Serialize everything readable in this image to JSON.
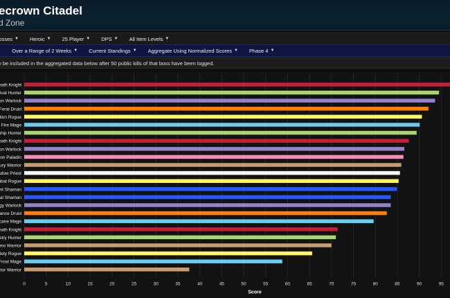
{
  "header": {
    "title": "ecrown Citadel",
    "subtitle": "d Zone"
  },
  "filters_row1": [
    {
      "label": "ll Bosses"
    },
    {
      "label": "Heroic"
    },
    {
      "label": "25 Player"
    },
    {
      "label": "DPS"
    },
    {
      "label": "All Item Levels"
    }
  ],
  "filters_row2": [
    {
      "label": "n"
    },
    {
      "label": "Over a Range of 2 Weeks"
    },
    {
      "label": "Current Standings"
    },
    {
      "label": "Aggregate Using Normalized Scores"
    },
    {
      "label": "Phase 4"
    }
  ],
  "notice": {
    "text": "y be included in the aggregated data below after 50 public kills of that boss have been logged."
  },
  "chart_data": {
    "type": "bar",
    "orientation": "horizontal",
    "xlabel": "Score",
    "xlim": [
      0,
      97
    ],
    "xticks": [
      0,
      5,
      10,
      15,
      20,
      25,
      30,
      35,
      40,
      45,
      50,
      55,
      60,
      65,
      70,
      75,
      80,
      85,
      90,
      95
    ],
    "grid": true,
    "categories": [
      "eath Knight",
      "rvival Hunter",
      "ion Warlock",
      "Feral Druid",
      "ation Rogue",
      "Fire Mage",
      "ship Hunter",
      "eath Knight",
      "ion Warlock",
      "tion Paladin",
      "fury Warrior",
      "adow Priest",
      "mbat Rogue",
      "ent Shaman",
      "ntal Shaman",
      "ogy Warlock",
      "lance Druid",
      "rcane Mage",
      "eath Knight",
      "ketry Hunter",
      "rms Warrior",
      "tlety Rogue",
      "Frost Mage",
      "ctor Warrior"
    ],
    "values": [
      97,
      94.5,
      93.6,
      92.1,
      90.6,
      90.1,
      89.4,
      87.6,
      86.6,
      86.4,
      85.9,
      85.6,
      85.3,
      84.9,
      83.5,
      83.5,
      82.6,
      79.6,
      71.4,
      71.0,
      70.0,
      65.6,
      58.8,
      37.6
    ],
    "colors": [
      "#c41e3a",
      "#abd473",
      "#9482c9",
      "#ff7d0a",
      "#fff569",
      "#69ccf0",
      "#abd473",
      "#c41e3a",
      "#9482c9",
      "#f58cba",
      "#c79c6e",
      "#f5f5f5",
      "#fff569",
      "#2459ff",
      "#2459ff",
      "#9482c9",
      "#ff7d0a",
      "#69ccf0",
      "#c41e3a",
      "#abd473",
      "#c79c6e",
      "#fff569",
      "#69ccf0",
      "#c79c6e"
    ]
  }
}
